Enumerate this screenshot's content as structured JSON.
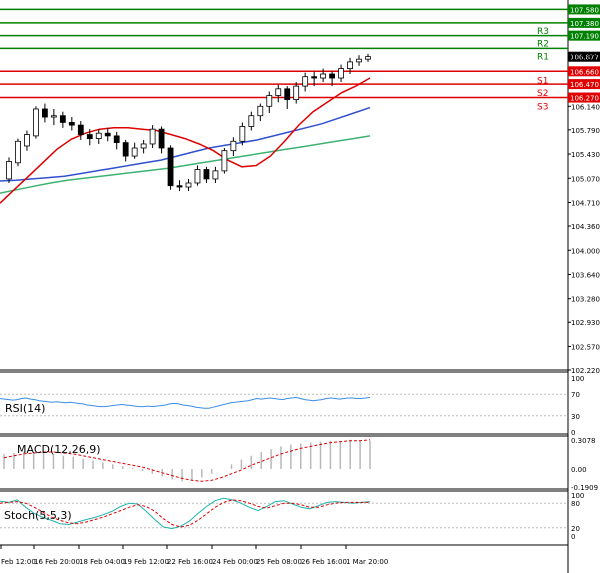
{
  "chart_data": {
    "type": "candlestick",
    "price_axis": {
      "ticks": [
        "106.877",
        "106.140",
        "105.790",
        "105.430",
        "105.070",
        "104.710",
        "104.360",
        "104.000",
        "103.640",
        "103.280",
        "102.930",
        "102.570",
        "102.220"
      ],
      "ylim": [
        102.22,
        107.72
      ]
    },
    "x_tick_labels": [
      "Feb 12:00",
      "16 Feb 20:00",
      "18 Feb 04:00",
      "19 Feb 12:00",
      "22 Feb 16:00",
      "24 Feb 00:00",
      "25 Feb 08:00",
      "26 Feb 16:00",
      "1 Mar 20:00"
    ],
    "levels": [
      {
        "name": "",
        "value": 107.58,
        "value_label": "107.580",
        "color": "#008000"
      },
      {
        "name": "R3",
        "value": 107.38,
        "value_label": "107.380",
        "color": "#008000"
      },
      {
        "name": "R2",
        "value": 107.19,
        "value_label": "107.190",
        "color": "#008000"
      },
      {
        "name": "R1",
        "value": 107.0,
        "value_label": "",
        "color": "#008000"
      },
      {
        "name": "S1",
        "value": 106.66,
        "value_label": "106.660",
        "color": "#e00000"
      },
      {
        "name": "S2",
        "value": 106.47,
        "value_label": "106.470",
        "color": "#e00000"
      },
      {
        "name": "S3",
        "value": 106.27,
        "value_label": "106.270",
        "color": "#e00000"
      }
    ],
    "current_price": "106.877",
    "candles": [
      [
        105.06,
        105.32,
        105.0,
        105.38
      ],
      [
        105.3,
        105.62,
        105.25,
        105.66
      ],
      [
        105.55,
        105.72,
        105.48,
        105.78
      ],
      [
        105.7,
        106.1,
        105.66,
        106.14
      ],
      [
        106.1,
        105.98,
        105.9,
        106.18
      ],
      [
        105.98,
        106.0,
        105.86,
        106.1
      ],
      [
        106.0,
        105.9,
        105.82,
        106.06
      ],
      [
        105.9,
        105.86,
        105.78,
        105.98
      ],
      [
        105.86,
        105.72,
        105.64,
        105.92
      ],
      [
        105.72,
        105.66,
        105.56,
        105.8
      ],
      [
        105.66,
        105.74,
        105.58,
        105.8
      ],
      [
        105.74,
        105.7,
        105.62,
        105.82
      ],
      [
        105.7,
        105.6,
        105.5,
        105.76
      ],
      [
        105.6,
        105.4,
        105.32,
        105.64
      ],
      [
        105.4,
        105.52,
        105.36,
        105.6
      ],
      [
        105.52,
        105.58,
        105.44,
        105.64
      ],
      [
        105.58,
        105.8,
        105.52,
        105.86
      ],
      [
        105.8,
        105.52,
        105.44,
        105.84
      ],
      [
        105.52,
        104.96,
        104.9,
        105.56
      ],
      [
        104.96,
        104.94,
        104.88,
        105.04
      ],
      [
        104.94,
        105.0,
        104.88,
        105.06
      ],
      [
        105.0,
        105.2,
        104.96,
        105.26
      ],
      [
        105.2,
        105.06,
        105.0,
        105.24
      ],
      [
        105.06,
        105.18,
        105.0,
        105.24
      ],
      [
        105.18,
        105.48,
        105.14,
        105.52
      ],
      [
        105.48,
        105.62,
        105.4,
        105.68
      ],
      [
        105.62,
        105.84,
        105.56,
        105.9
      ],
      [
        105.84,
        106.0,
        105.78,
        106.06
      ],
      [
        106.0,
        106.14,
        105.92,
        106.18
      ],
      [
        106.14,
        106.3,
        106.04,
        106.36
      ],
      [
        106.3,
        106.4,
        106.2,
        106.46
      ],
      [
        106.4,
        106.24,
        106.1,
        106.44
      ],
      [
        106.24,
        106.44,
        106.18,
        106.5
      ],
      [
        106.44,
        106.58,
        106.36,
        106.64
      ],
      [
        106.58,
        106.56,
        106.44,
        106.66
      ],
      [
        106.56,
        106.62,
        106.5,
        106.7
      ],
      [
        106.62,
        106.56,
        106.44,
        106.66
      ],
      [
        106.56,
        106.7,
        106.5,
        106.76
      ],
      [
        106.7,
        106.8,
        106.62,
        106.86
      ],
      [
        106.8,
        106.84,
        106.74,
        106.9
      ],
      [
        106.84,
        106.878,
        106.8,
        106.92
      ]
    ],
    "ma_red": [
      104.7,
      104.9,
      105.1,
      105.3,
      105.5,
      105.65,
      105.74,
      105.8,
      105.82,
      105.82,
      105.8,
      105.78,
      105.72,
      105.66,
      105.58,
      105.48,
      105.34,
      105.24,
      105.26,
      105.4,
      105.62,
      105.86,
      106.06,
      106.2,
      106.34,
      106.44,
      106.56
    ],
    "ma_blue": [
      105.03,
      105.04,
      105.06,
      105.08,
      105.1,
      105.14,
      105.18,
      105.22,
      105.26,
      105.3,
      105.34,
      105.4,
      105.46,
      105.52,
      105.56,
      105.6,
      105.64,
      105.7,
      105.76,
      105.82,
      105.88,
      105.96,
      106.04,
      106.12
    ],
    "ma_green": [
      104.85,
      104.9,
      104.95,
      105.0,
      105.04,
      105.07,
      105.1,
      105.13,
      105.16,
      105.19,
      105.22,
      105.26,
      105.3,
      105.34,
      105.38,
      105.42,
      105.46,
      105.5,
      105.54,
      105.58,
      105.62,
      105.66,
      105.7
    ],
    "rsi": {
      "label": "RSI(14)",
      "ticks": [
        "100",
        "70",
        "30",
        "0"
      ],
      "values": [
        62,
        61,
        60,
        59,
        60,
        62,
        63,
        61,
        60,
        58,
        57,
        56,
        55,
        56,
        55,
        54,
        55,
        54,
        53,
        52,
        50,
        49,
        48,
        47,
        47,
        48,
        49,
        50,
        51,
        50,
        49,
        48,
        47,
        47,
        48,
        47,
        48,
        49,
        50,
        52,
        53,
        52,
        50,
        49,
        48,
        46,
        45,
        44,
        44,
        46,
        48,
        50,
        52,
        54,
        55,
        56,
        57,
        58,
        60,
        62,
        61,
        62,
        63,
        62,
        61,
        60,
        62,
        63,
        64,
        62,
        60,
        59,
        58,
        59,
        60,
        62,
        63,
        62,
        61,
        62,
        63,
        63,
        62,
        62,
        63,
        64
      ]
    },
    "macd": {
      "label": "MACD(12,26,9)",
      "ticks": [
        "0.3078",
        "0.00",
        "-0.1909"
      ],
      "hist": [
        0.16,
        0.17,
        0.18,
        0.18,
        0.17,
        0.16,
        0.14,
        0.13,
        0.11,
        0.09,
        0.07,
        0.05,
        0.03,
        0.01,
        -0.02,
        -0.05,
        -0.08,
        -0.11,
        -0.13,
        -0.12,
        -0.09,
        -0.05,
        0.0,
        0.05,
        0.1,
        0.14,
        0.18,
        0.21,
        0.24,
        0.26,
        0.27,
        0.28,
        0.29,
        0.3,
        0.3,
        0.31,
        0.3,
        0.3
      ],
      "signal": [
        0.12,
        0.14,
        0.16,
        0.17,
        0.18,
        0.18,
        0.17,
        0.16,
        0.14,
        0.12,
        0.1,
        0.08,
        0.06,
        0.04,
        0.02,
        -0.01,
        -0.04,
        -0.07,
        -0.1,
        -0.12,
        -0.13,
        -0.12,
        -0.09,
        -0.05,
        -0.01,
        0.04,
        0.08,
        0.12,
        0.16,
        0.19,
        0.22,
        0.24,
        0.26,
        0.28,
        0.29,
        0.3,
        0.3,
        0.31
      ]
    },
    "stoch": {
      "label": "Stoch(5,5,3)",
      "ticks": [
        "100",
        "80",
        "20",
        "0"
      ],
      "k": [
        85,
        82,
        88,
        70,
        55,
        45,
        38,
        30,
        28,
        34,
        40,
        45,
        52,
        60,
        72,
        80,
        78,
        60,
        40,
        22,
        18,
        24,
        36,
        55,
        72,
        86,
        92,
        88,
        80,
        70,
        62,
        72,
        84,
        86,
        78,
        70,
        66,
        74,
        82,
        84,
        82,
        80,
        82,
        84
      ],
      "d": [
        80,
        82,
        84,
        80,
        70,
        58,
        46,
        38,
        32,
        30,
        34,
        40,
        46,
        54,
        62,
        70,
        76,
        72,
        60,
        42,
        28,
        22,
        26,
        38,
        54,
        70,
        82,
        88,
        86,
        80,
        72,
        68,
        74,
        80,
        80,
        76,
        70,
        70,
        76,
        80,
        82,
        82,
        82,
        82
      ]
    }
  }
}
